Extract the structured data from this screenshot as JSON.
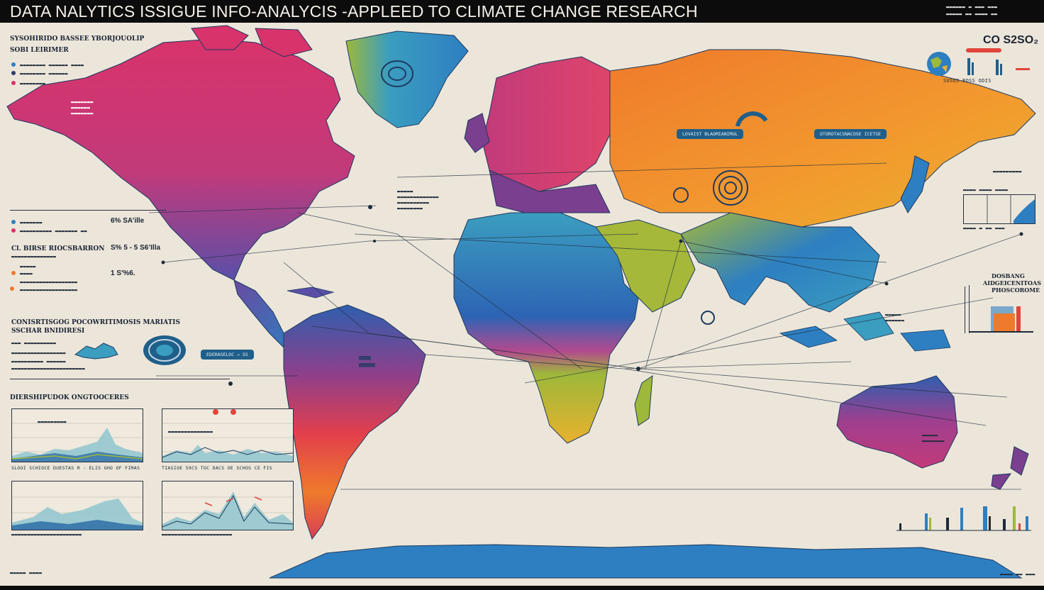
{
  "header": {
    "title": "DATA NALYTICS ISSIGUE INFO-ANALYCIS -APPLEED TO CLIMATE CHANGE RESEARCH"
  },
  "right_top": {
    "co2_label": "CO S2SO₂"
  },
  "left_panel": {
    "heading_1": "SYSOHIRIDO BASSEE YBORJOUOLIP",
    "heading_2": "SOBI LEIRIMER",
    "stat_1": "6% SA’ille",
    "stat_2": "S% 5 - 5 S6’Illa",
    "stat_3": "1 S'%6.",
    "section_title_1": "CONISRTISGOG POCOWRITIMOSIS MARIATIS",
    "section_title_2": "SSCHAR BNIDIRESI",
    "legend_1": "Cl. BIRSE RIOCSBARRON",
    "chart_section_title": "DIERSHIPUDOK ONGTOOCERES",
    "chart_captions": [
      "SLOOI SCHIOCE DUESTAS R - ELIS GHO OF FIMAS",
      "TIASIOE 59CS TOC DACS OE SCHOS CE FIS"
    ],
    "region_pill": "EDERASELOC → SS"
  },
  "right_panel": {
    "bar_header_1": "DOSBANG",
    "bar_header_2": "AIDGEICENITOAS",
    "bar_header_3": "PHOSCOROME",
    "small_bars_caption": "SUSUS ROSS ODIS"
  },
  "map": {
    "callout_texts": [
      "LOVAIST BLAOMIANIMUL",
      "OTOROTACSNACOSE ICETSE"
    ]
  },
  "colors": {
    "magenta": "#d8336b",
    "purple": "#7a3f8e",
    "blue": "#2d7fc1",
    "teal": "#3b9dbf",
    "orange": "#ef7a2c",
    "yellow": "#e9b12e",
    "green": "#9db83a",
    "navy": "#1d3a5f"
  }
}
